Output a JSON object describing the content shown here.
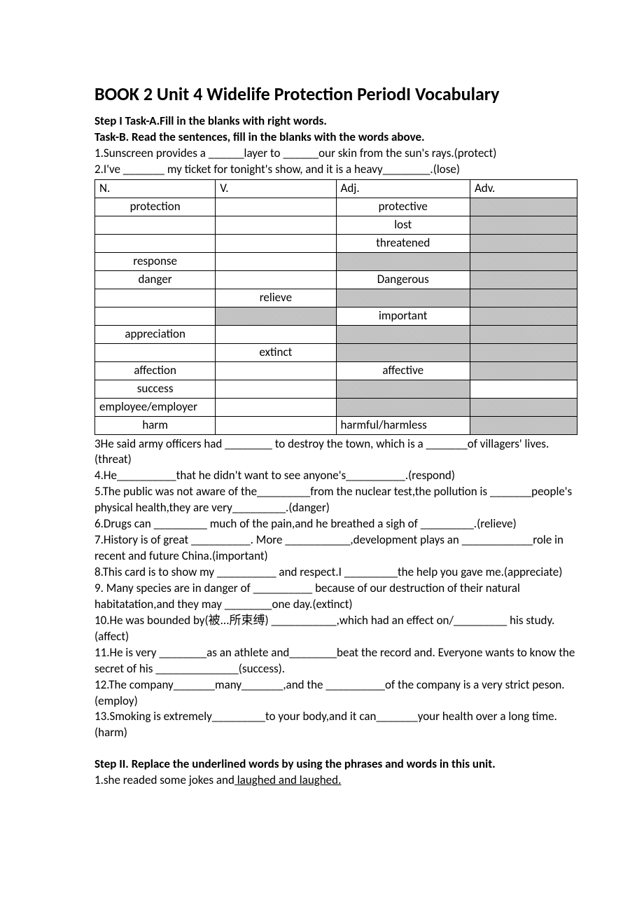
{
  "title": "BOOK 2 Unit 4 Widelife Protection    PeriodI    Vocabulary",
  "step1": {
    "taskA": "Step I Task-A.Fill in the blanks with right words.",
    "taskB": "Task-B. Read the sentences, fill in the blanks with the words above.",
    "q1": "1.Sunscreen provides a ______layer to ______our skin from the sun's rays.(protect)",
    "q2": "2.I've _______ my ticket for tonight's show, and it is a heavy________.(lose)"
  },
  "table": {
    "headers": {
      "n": "N.",
      "v": "V.",
      "adj": "Adj.",
      "adv": "Adv."
    },
    "rows": [
      {
        "n": "protection",
        "nAlign": "center",
        "nShaded": false,
        "v": "",
        "vShaded": false,
        "adj": "protective",
        "adjAlign": "center",
        "adjShaded": false,
        "adv": "",
        "advShaded": true
      },
      {
        "n": "",
        "nAlign": "left",
        "nShaded": false,
        "v": "",
        "vShaded": false,
        "adj": "lost",
        "adjAlign": "center",
        "adjShaded": false,
        "adv": "",
        "advShaded": true
      },
      {
        "n": "",
        "nAlign": "left",
        "nShaded": false,
        "v": "",
        "vShaded": false,
        "adj": "threatened",
        "adjAlign": "center",
        "adjShaded": false,
        "adv": "",
        "advShaded": true
      },
      {
        "n": "response",
        "nAlign": "center",
        "nShaded": false,
        "v": "",
        "vShaded": false,
        "adj": "",
        "adjAlign": "left",
        "adjShaded": true,
        "adv": "",
        "advShaded": true
      },
      {
        "n": "danger",
        "nAlign": "center",
        "nShaded": false,
        "v": "",
        "vShaded": false,
        "adj": "Dangerous",
        "adjAlign": "center",
        "adjShaded": false,
        "adv": "",
        "advShaded": true
      },
      {
        "n": "",
        "nAlign": "left",
        "nShaded": false,
        "v": "relieve",
        "vShaded": false,
        "adj": "",
        "adjAlign": "left",
        "adjShaded": true,
        "adv": "",
        "advShaded": true
      },
      {
        "n": "",
        "nAlign": "left",
        "nShaded": false,
        "v": "",
        "vShaded": true,
        "adj": "important",
        "adjAlign": "center",
        "adjShaded": false,
        "adv": "",
        "advShaded": true
      },
      {
        "n": "appreciation",
        "nAlign": "center",
        "nShaded": false,
        "v": "",
        "vShaded": false,
        "adj": "",
        "adjAlign": "left",
        "adjShaded": true,
        "adv": "",
        "advShaded": true
      },
      {
        "n": "",
        "nAlign": "left",
        "nShaded": false,
        "v": "extinct",
        "vShaded": false,
        "adj": "",
        "adjAlign": "left",
        "adjShaded": true,
        "adv": "",
        "advShaded": true
      },
      {
        "n": "affection",
        "nAlign": "center",
        "nShaded": false,
        "v": "",
        "vShaded": false,
        "adj": "affective",
        "adjAlign": "center",
        "adjShaded": false,
        "adv": "",
        "advShaded": true
      },
      {
        "n": "success",
        "nAlign": "center",
        "nShaded": false,
        "v": "",
        "vShaded": false,
        "adj": "",
        "adjAlign": "left",
        "adjShaded": true,
        "adv": "",
        "advShaded": false
      },
      {
        "n": "employee/employer",
        "nAlign": "left",
        "nShaded": false,
        "v": "",
        "vShaded": false,
        "adj": "",
        "adjAlign": "left",
        "adjShaded": true,
        "adv": "",
        "advShaded": true
      },
      {
        "n": "harm",
        "nAlign": "center",
        "nShaded": false,
        "v": "",
        "vShaded": false,
        "adj": "harmful/harmless",
        "adjAlign": "left",
        "adjShaded": false,
        "adv": "",
        "advShaded": true
      }
    ]
  },
  "questions": {
    "q3": "3He said army officers had ________ to destroy the town, which is a _______of villagers' lives.(threat)",
    "q4": "4.He__________that he didn't want to see anyone's__________.(respond)",
    "q5": "5.The public was not aware of the_________from the nuclear test,the pollution is _______people's physical health,they are very_________.(danger)",
    "q6": "6.Drugs can _________ much of the pain,and he breathed a sigh of _________.(relieve)",
    "q7": "7.History is of great __________. More ___________,development plays an ____________role in recent and future China.(important)",
    "q8": "8.This card is to show my __________ and respect.I _________the help you gave me.(appreciate)",
    "q9": "9. Many species are in danger of __________ because of our destruction of their natural habitatation,and they may ________one day.(extinct)",
    "q10": "10.He was bounded by(被...所束缚) ___________,which had an effect on/_________ his study.(affect)",
    "q11": "11.He is very ________as an athlete and________beat the record and. Everyone wants to know the secret of his ______________(success).",
    "q12": "12.The company_______many_______,and the __________of the company is a very strict peson.(employ)",
    "q13": "13.Smoking is extremely_________to your body,and it can_______your health over a long time.(harm)"
  },
  "step2": {
    "heading": "Step II. Replace the underlined words by using the phrases and words in this unit.",
    "q1_prefix": "1.she readed some jokes and",
    "q1_underlined": " laughed and laughed."
  }
}
